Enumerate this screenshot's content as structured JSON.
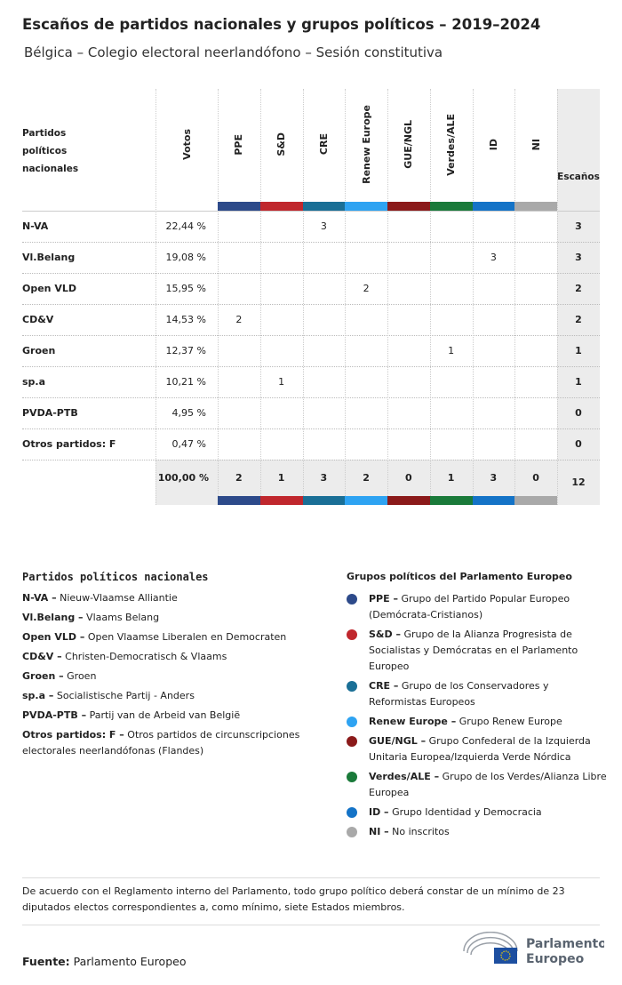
{
  "header": {
    "title": "Escaños de partidos nacionales y grupos políticos – 2019–2024",
    "subtitle": "Bélgica – Colegio electoral neerlandófono – Sesión constitutiva"
  },
  "table": {
    "columns": [
      "Partidos políticos nacionales",
      "Votos",
      "PPE",
      "S&D",
      "CRE",
      "Renew Europe",
      "GUE/NGL",
      "Verdes/ALE",
      "ID",
      "NI",
      "Escaños"
    ],
    "group_colors": [
      "#2d4a8a",
      "#c0272d",
      "#1a6f96",
      "#2ea3f2",
      "#8b1a1a",
      "#1a7a3a",
      "#1473c7",
      "#a9a9a9"
    ],
    "rows": [
      {
        "name": "N-VA",
        "votes": "22,44 %",
        "seats": [
          null,
          null,
          3,
          null,
          null,
          null,
          null,
          null
        ],
        "total": 3
      },
      {
        "name": "Vl.Belang",
        "votes": "19,08 %",
        "seats": [
          null,
          null,
          null,
          null,
          null,
          null,
          3,
          null
        ],
        "total": 3
      },
      {
        "name": "Open VLD",
        "votes": "15,95 %",
        "seats": [
          null,
          null,
          null,
          2,
          null,
          null,
          null,
          null
        ],
        "total": 2
      },
      {
        "name": "CD&V",
        "votes": "14,53 %",
        "seats": [
          2,
          null,
          null,
          null,
          null,
          null,
          null,
          null
        ],
        "total": 2
      },
      {
        "name": "Groen",
        "votes": "12,37 %",
        "seats": [
          null,
          null,
          null,
          null,
          null,
          1,
          null,
          null
        ],
        "total": 1
      },
      {
        "name": "sp.a",
        "votes": "10,21 %",
        "seats": [
          null,
          1,
          null,
          null,
          null,
          null,
          null,
          null
        ],
        "total": 1
      },
      {
        "name": "PVDA-PTB",
        "votes": "4,95 %",
        "seats": [
          null,
          null,
          null,
          null,
          null,
          null,
          null,
          null
        ],
        "total": 0
      },
      {
        "name": "Otros partidos: F",
        "votes": "0,47 %",
        "seats": [
          null,
          null,
          null,
          null,
          null,
          null,
          null,
          null
        ],
        "total": 0
      }
    ],
    "totals": {
      "votes": "100,00 %",
      "seats": [
        2,
        1,
        3,
        2,
        0,
        1,
        3,
        0
      ],
      "total": 12
    }
  },
  "national_legend": {
    "title": "Partidos políticos nacionales",
    "items": [
      {
        "abbr": "N-VA –",
        "name": "Nieuw-Vlaamse Alliantie"
      },
      {
        "abbr": "Vl.Belang –",
        "name": "Vlaams Belang"
      },
      {
        "abbr": "Open VLD –",
        "name": "Open Vlaamse Liberalen en Democraten"
      },
      {
        "abbr": "CD&V –",
        "name": "Christen-Democratisch & Vlaams"
      },
      {
        "abbr": "Groen –",
        "name": "Groen"
      },
      {
        "abbr": "sp.a –",
        "name": "Socialistische Partij - Anders"
      },
      {
        "abbr": "PVDA-PTB –",
        "name": "Partij van de Arbeid van België"
      },
      {
        "abbr": "Otros partidos: F –",
        "name": "Otros partidos de circunscripciones electorales neerlandófonas (Flandes)"
      }
    ]
  },
  "group_legend": {
    "title": "Grupos políticos del Parlamento Europeo",
    "items": [
      {
        "abbr": "PPE –",
        "name": "Grupo del Partido Popular Europeo (Demócrata-Cristianos)"
      },
      {
        "abbr": "S&D –",
        "name": "Grupo de la Alianza Progresista de Socialistas y Demócratas en el Parlamento Europeo"
      },
      {
        "abbr": "CRE –",
        "name": "Grupo de los Conservadores y Reformistas Europeos"
      },
      {
        "abbr": "Renew Europe –",
        "name": "Grupo Renew Europe"
      },
      {
        "abbr": "GUE/NGL –",
        "name": "Grupo Confederal de la Izquierda Unitaria Europea/Izquierda Verde Nórdica"
      },
      {
        "abbr": "Verdes/ALE –",
        "name": "Grupo de los Verdes/Alianza Libre Europea"
      },
      {
        "abbr": "ID –",
        "name": "Grupo Identidad y Democracia"
      },
      {
        "abbr": "NI –",
        "name": "No inscritos"
      }
    ]
  },
  "footer": {
    "note": "De acuerdo con el Reglamento interno del Parlamento, todo grupo político deberá constar de un mínimo de 23 diputados electos correspondientes a, como mínimo, siete Estados miembros.",
    "source_label": "Fuente:",
    "source": "Parlamento Europeo",
    "logo": [
      "Parlamento",
      "Europeo"
    ]
  }
}
